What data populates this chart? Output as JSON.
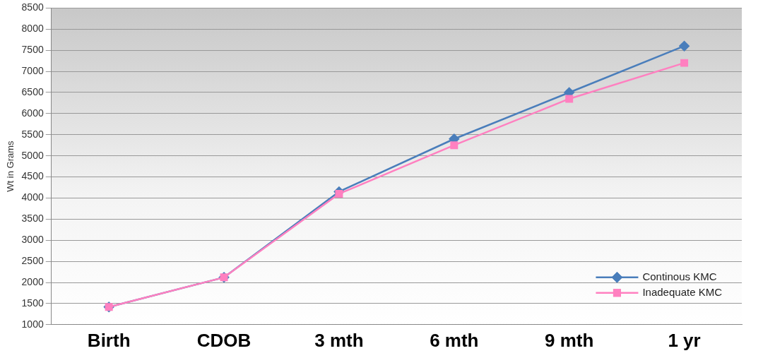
{
  "chart_data": {
    "type": "line",
    "ylabel": "Wt in Grams",
    "categories": [
      "Birth",
      "CDOB",
      "3 mth",
      "6 mth",
      "9 mth",
      "1 yr"
    ],
    "series": [
      {
        "name": "Continous KMC",
        "color": "#4a7ebb",
        "marker": "diamond",
        "values": [
          1420,
          2120,
          4150,
          5400,
          6500,
          7600
        ]
      },
      {
        "name": "Inadequate KMC",
        "color": "#ff80c0",
        "marker": "square",
        "values": [
          1420,
          2120,
          4100,
          5250,
          6350,
          7200
        ]
      }
    ],
    "ylim": [
      1000,
      8500
    ],
    "yticks": [
      1000,
      1500,
      2000,
      2500,
      3000,
      3500,
      4000,
      4500,
      5000,
      5500,
      6000,
      6500,
      7000,
      7500,
      8000,
      8500
    ],
    "grid": "y",
    "legend": "bottom right"
  }
}
